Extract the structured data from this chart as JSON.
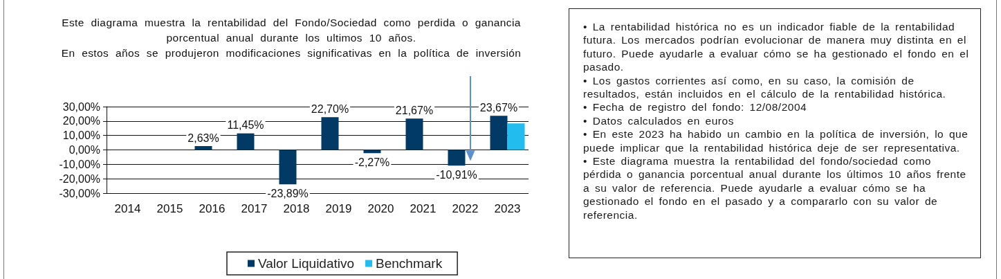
{
  "chart_data": {
    "type": "bar",
    "title": "Este diagrama muestra la rentabilidad del Fondo/Sociedad como perdida o ganancia porcentual anual durante los ultimos 10 años.",
    "subtitle": "En estos años se produjeron modificaciones significativas en la política de inversión",
    "categories": [
      "2014",
      "2015",
      "2016",
      "2017",
      "2018",
      "2019",
      "2020",
      "2021",
      "2022",
      "2023"
    ],
    "series": [
      {
        "name": "Valor Liquidativo",
        "color": "#003a65",
        "values": [
          null,
          null,
          2.63,
          11.45,
          -23.89,
          22.7,
          -2.27,
          21.67,
          -10.91,
          23.67
        ],
        "value_labels": [
          null,
          null,
          "2,63%",
          "11,45%",
          "-23,89%",
          "22,70%",
          "-2,27%",
          "21,67%",
          "-10,91%",
          "23,67%"
        ]
      },
      {
        "name": "Benchmark",
        "color": "#22bdee",
        "values": [
          null,
          null,
          null,
          null,
          null,
          null,
          null,
          null,
          null,
          18.4
        ]
      }
    ],
    "ylim": [
      -30,
      30
    ],
    "yticks": [
      {
        "value": -30,
        "label": "-30,00%"
      },
      {
        "value": -20,
        "label": "-20,00%"
      },
      {
        "value": -10,
        "label": "-10,00%"
      },
      {
        "value": 0,
        "label": "0,00%"
      },
      {
        "value": 10,
        "label": "10,00%"
      },
      {
        "value": 20,
        "label": "20,00%"
      },
      {
        "value": 30,
        "label": "30,00%"
      }
    ],
    "grid": "y",
    "legend": "bottom",
    "annotations": [
      "• La rentabilidad histórica no es un indicador fiable de la rentabilidad futura. Los mercados podrían evolucionar de manera muy distinta en el futuro. Puede ayudarle a evaluar cómo se ha gestionado el fondo en el pasado.",
      "• Los gastos corrientes así como, en su caso, la comisión de resultados, están incluidos en el cálculo de la rentabilidad histórica.",
      "• Fecha de registro del fondo: 12/08/2004",
      "• Datos calculados en euros",
      "• En este 2023 ha habido un cambio en la política de inversión, lo que puede implicar que la rentabilidad histórica deje de ser representativa.",
      "• Este diagrama muestra la rentabilidad del fondo/sociedad como pérdida o ganancia porcentual anual durante los últimos 10 años frente a su valor de referencia. Puede ayudarle a evaluar cómo se ha gestionado el fondo en el pasado y a compararlo con su valor de referencia."
    ]
  }
}
